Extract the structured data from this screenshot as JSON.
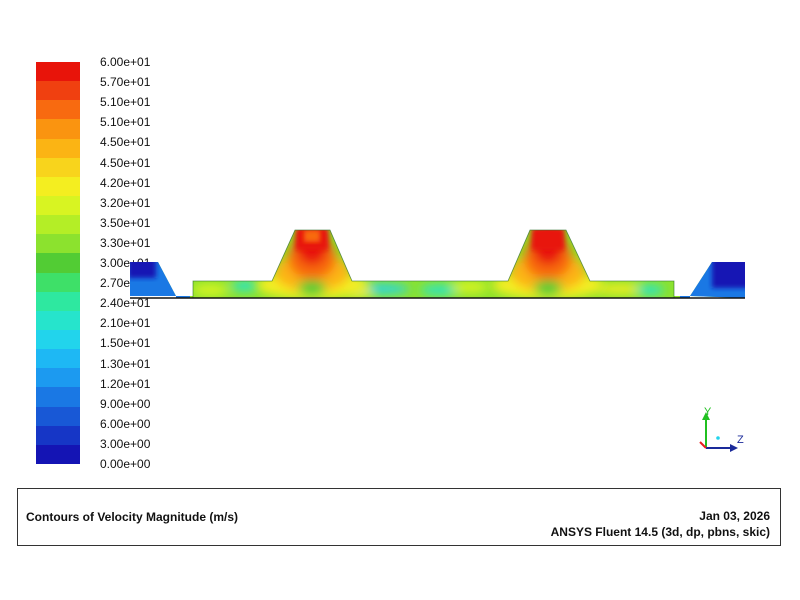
{
  "legend": {
    "labels": [
      "6.00e+01",
      "5.70e+01",
      "5.10e+01",
      "5.10e+01",
      "4.50e+01",
      "4.50e+01",
      "4.20e+01",
      "3.20e+01",
      "3.50e+01",
      "3.30e+01",
      "3.00e+01",
      "2.70e+01",
      "2.40e+01",
      "2.10e+01",
      "1.50e+01",
      "1.30e+01",
      "1.20e+01",
      "9.00e+00",
      "6.00e+00",
      "3.00e+00",
      "0.00e+00"
    ],
    "colors": [
      "#e8140a",
      "#f04010",
      "#f86a10",
      "#fa9410",
      "#fbb414",
      "#f8d41c",
      "#f4ee20",
      "#d8f422",
      "#b4ee26",
      "#8ce22e",
      "#52cc34",
      "#3ee068",
      "#2ee8a0",
      "#26e4cc",
      "#22d4ec",
      "#1eb8f4",
      "#1c9af0",
      "#1a78e4",
      "#1858d6",
      "#1636c6",
      "#1414b4"
    ]
  },
  "triad": {
    "y_label": "Y",
    "z_label": "Z",
    "x_color": "#e82020",
    "y_color": "#20c020",
    "z_color": "#1a2a9a"
  },
  "info": {
    "title": "Contours of Velocity Magnitude (m/s)",
    "date": "Jan 03, 2026",
    "solver": "ANSYS Fluent 14.5 (3d, dp, pbns, skic)"
  }
}
